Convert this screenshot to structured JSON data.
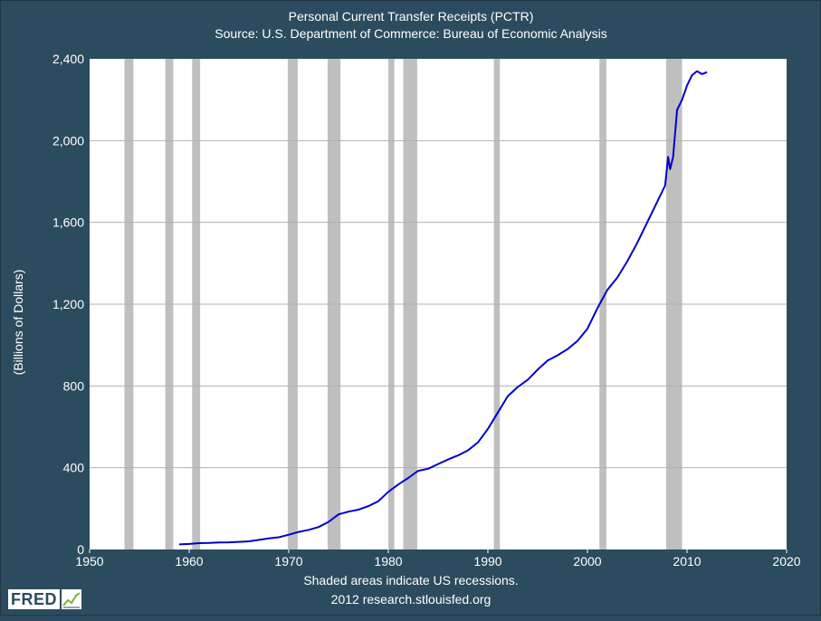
{
  "chart_data": {
    "type": "line",
    "title": "Personal Current Transfer Receipts (PCTR)",
    "subtitle": "Source: U.S. Department of Commerce: Bureau of Economic Analysis",
    "xlabel": "",
    "ylabel": "(Billions of Dollars)",
    "xlim": [
      1950,
      2020
    ],
    "ylim": [
      0,
      2400
    ],
    "x_ticks": [
      "1950",
      "1960",
      "1970",
      "1980",
      "1990",
      "2000",
      "2010",
      "2020"
    ],
    "y_ticks": [
      "0",
      "400",
      "800",
      "1,200",
      "1,600",
      "2,000",
      "2,400"
    ],
    "grid": "horizontal",
    "series_color": "#0000cc",
    "recession_color": "#bfbfbf",
    "recessions": [
      [
        1953.5,
        1954.4
      ],
      [
        1957.6,
        1958.4
      ],
      [
        1960.3,
        1961.1
      ],
      [
        1969.9,
        1970.9
      ],
      [
        1973.9,
        1975.2
      ],
      [
        1980.0,
        1980.6
      ],
      [
        1981.5,
        1982.9
      ],
      [
        1990.6,
        1991.2
      ],
      [
        2001.2,
        2001.9
      ],
      [
        2007.9,
        2009.5
      ]
    ],
    "series": [
      {
        "values": [
          [
            1959.0,
            25
          ],
          [
            1960.0,
            27
          ],
          [
            1961.0,
            31
          ],
          [
            1962.0,
            32
          ],
          [
            1963.0,
            34
          ],
          [
            1964.0,
            35
          ],
          [
            1965.0,
            37
          ],
          [
            1966.0,
            40
          ],
          [
            1967.0,
            47
          ],
          [
            1968.0,
            54
          ],
          [
            1969.0,
            60
          ],
          [
            1970.0,
            72
          ],
          [
            1971.0,
            86
          ],
          [
            1972.0,
            96
          ],
          [
            1973.0,
            110
          ],
          [
            1974.0,
            135
          ],
          [
            1975.0,
            172
          ],
          [
            1976.0,
            185
          ],
          [
            1977.0,
            195
          ],
          [
            1978.0,
            212
          ],
          [
            1979.0,
            236
          ],
          [
            1980.0,
            282
          ],
          [
            1981.0,
            318
          ],
          [
            1982.0,
            350
          ],
          [
            1983.0,
            385
          ],
          [
            1984.0,
            395
          ],
          [
            1985.0,
            418
          ],
          [
            1986.0,
            440
          ],
          [
            1987.0,
            460
          ],
          [
            1988.0,
            485
          ],
          [
            1989.0,
            524
          ],
          [
            1990.0,
            590
          ],
          [
            1991.0,
            670
          ],
          [
            1992.0,
            750
          ],
          [
            1993.0,
            795
          ],
          [
            1994.0,
            830
          ],
          [
            1995.0,
            880
          ],
          [
            1996.0,
            924
          ],
          [
            1997.0,
            950
          ],
          [
            1998.0,
            980
          ],
          [
            1999.0,
            1020
          ],
          [
            2000.0,
            1080
          ],
          [
            2001.0,
            1180
          ],
          [
            2002.0,
            1270
          ],
          [
            2003.0,
            1330
          ],
          [
            2004.0,
            1410
          ],
          [
            2005.0,
            1500
          ],
          [
            2006.0,
            1600
          ],
          [
            2007.0,
            1700
          ],
          [
            2007.8,
            1780
          ],
          [
            2008.1,
            1920
          ],
          [
            2008.3,
            1860
          ],
          [
            2008.6,
            1920
          ],
          [
            2009.0,
            2150
          ],
          [
            2009.5,
            2200
          ],
          [
            2010.0,
            2270
          ],
          [
            2010.5,
            2320
          ],
          [
            2011.0,
            2340
          ],
          [
            2011.5,
            2325
          ],
          [
            2012.0,
            2335
          ]
        ]
      }
    ]
  },
  "footer": {
    "note": "Shaded areas indicate US recessions.",
    "source": "2012 research.stlouisfed.org"
  },
  "brand": {
    "logo_text": "FRED"
  },
  "colors": {
    "background": "#2b4c5e",
    "plot_area": "#ffffff",
    "gridline": "#b0b0b0",
    "text": "#ffffff"
  }
}
